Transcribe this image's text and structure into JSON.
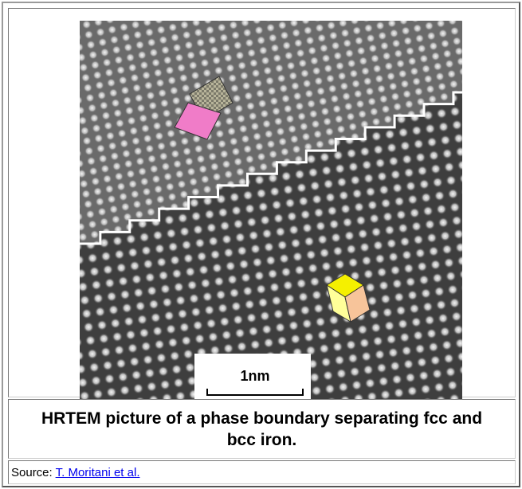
{
  "image": {
    "scale_bar": "1nm"
  },
  "caption": "HRTEM picture of a phase boundary separating fcc and bcc iron.",
  "source": {
    "label": "Source:",
    "link": "T. Moritani et al."
  }
}
